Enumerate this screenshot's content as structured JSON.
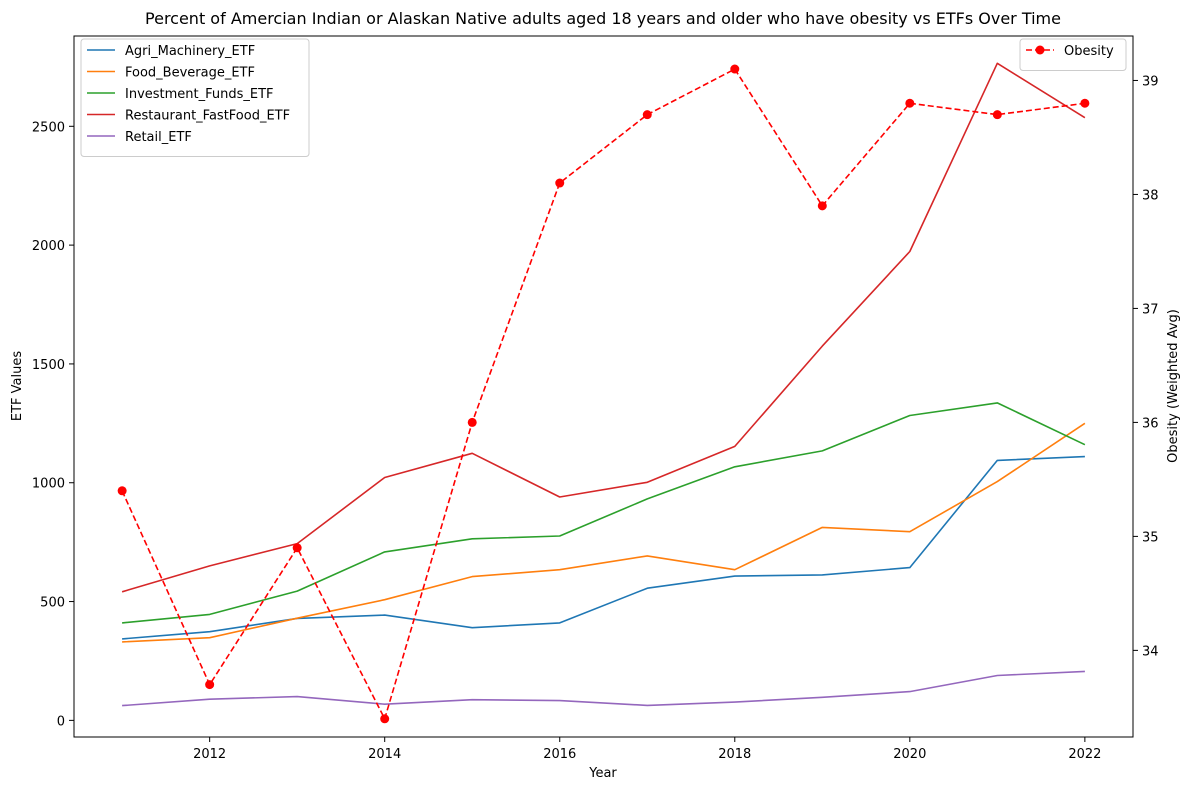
{
  "chart_data": {
    "type": "line",
    "title": "Percent of Amercian Indian or Alaskan Native adults aged 18 years and older who have obesity vs ETFs Over Time",
    "xlabel": "Year",
    "ylabel": "ETF Values",
    "y2label": "Obesity (Weighted Avg)",
    "x": [
      2011,
      2012,
      2013,
      2014,
      2015,
      2016,
      2017,
      2018,
      2019,
      2020,
      2021,
      2022
    ],
    "xlim": [
      2010.45,
      2022.55
    ],
    "xticks": [
      2012,
      2014,
      2016,
      2018,
      2020,
      2022
    ],
    "ylim": [
      -70,
      2880
    ],
    "yticks": [
      0,
      500,
      1000,
      1500,
      2000,
      2500
    ],
    "y2lim": [
      33.24,
      39.39
    ],
    "y2ticks": [
      34,
      35,
      36,
      37,
      38,
      39
    ],
    "grid": false,
    "legend_left_position": "upper left",
    "legend_right_position": "upper right",
    "series": [
      {
        "name": "Agri_Machinery_ETF",
        "color": "#1f77b4",
        "axis": "left",
        "values": [
          343,
          373,
          429,
          443,
          390,
          410,
          556,
          607,
          612,
          643,
          1094,
          1110
        ]
      },
      {
        "name": "Food_Beverage_ETF",
        "color": "#ff7f0e",
        "axis": "left",
        "values": [
          330,
          348,
          430,
          508,
          605,
          634,
          692,
          634,
          812,
          794,
          1005,
          1250
        ]
      },
      {
        "name": "Investment_Funds_ETF",
        "color": "#2ca02c",
        "axis": "left",
        "values": [
          410,
          446,
          544,
          709,
          764,
          776,
          932,
          1067,
          1134,
          1283,
          1336,
          1160
        ]
      },
      {
        "name": "Restaurant_FastFood_ETF",
        "color": "#d62728",
        "axis": "left",
        "values": [
          541,
          650,
          744,
          1022,
          1124,
          940,
          1002,
          1153,
          1575,
          1973,
          2765,
          2536
        ]
      },
      {
        "name": "Retail_ETF",
        "color": "#9467bd",
        "axis": "left",
        "values": [
          62,
          89,
          100,
          68,
          87,
          83,
          63,
          77,
          97,
          121,
          189,
          206
        ]
      },
      {
        "name": "Obesity",
        "color": "#ff0000",
        "axis": "right",
        "dashed": true,
        "markers": true,
        "values": [
          35.4,
          33.7,
          34.9,
          33.4,
          36.0,
          38.1,
          38.7,
          39.1,
          37.9,
          38.8,
          38.7,
          38.8
        ]
      }
    ]
  }
}
